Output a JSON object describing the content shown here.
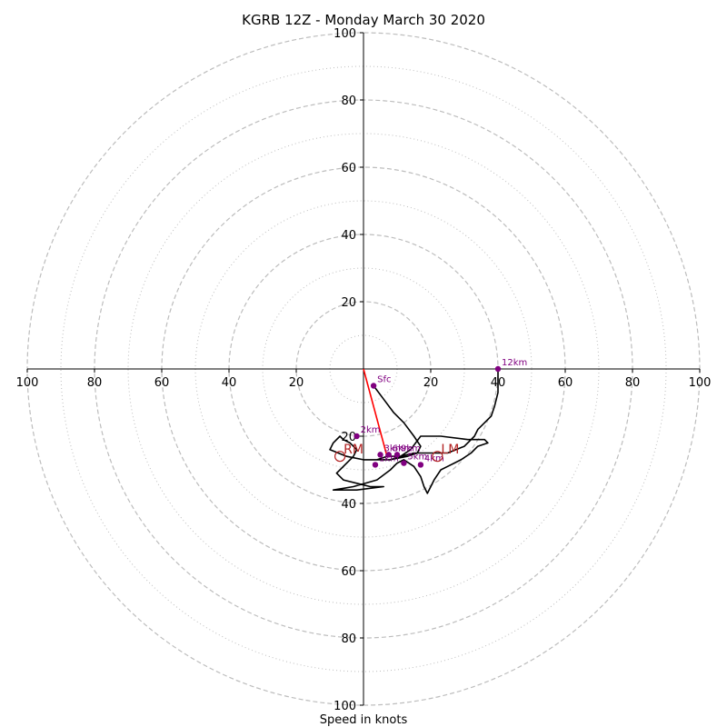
{
  "chart_data": {
    "type": "hodograph",
    "title": "KGRB 12Z - Monday March 30 2020",
    "xlabel": "Speed in knots",
    "xlim": [
      -100,
      100
    ],
    "ylim": [
      -100,
      100
    ],
    "major_rings": [
      20,
      40,
      60,
      80,
      100
    ],
    "minor_rings": [
      10,
      30,
      50,
      70,
      90
    ],
    "tick_values": [
      20,
      40,
      60,
      80,
      100
    ],
    "x_tick_labels": [
      "100",
      "80",
      "60",
      "40",
      "20",
      "20",
      "40",
      "60",
      "80",
      "100"
    ],
    "y_tick_labels": [
      "100",
      "80",
      "60",
      "40",
      "20",
      "20",
      "40",
      "60",
      "80",
      "100"
    ],
    "colors": {
      "trace": "#000000",
      "markers": "#800080",
      "shear_vector": "#ff0000",
      "storm_motion": "#b22222",
      "rings": "#bdbdbd"
    },
    "trace": [
      [
        3,
        -5
      ],
      [
        6,
        -9
      ],
      [
        9,
        -13
      ],
      [
        12,
        -16
      ],
      [
        15,
        -20
      ],
      [
        17,
        -23
      ],
      [
        16,
        -25
      ],
      [
        13,
        -26
      ],
      [
        8,
        -27
      ],
      [
        0,
        -27
      ],
      [
        -5,
        -26
      ],
      [
        -10,
        -24
      ],
      [
        -9,
        -22
      ],
      [
        -7,
        -20
      ],
      [
        -6,
        -21
      ],
      [
        -4,
        -22
      ],
      [
        -3,
        -23
      ],
      [
        -2,
        -24
      ],
      [
        -3,
        -26
      ],
      [
        -6,
        -29
      ],
      [
        -8,
        -31
      ],
      [
        -6,
        -33
      ],
      [
        -2,
        -34
      ],
      [
        2,
        -35
      ],
      [
        6,
        -35
      ],
      [
        -2,
        -36
      ],
      [
        -9,
        -36
      ],
      [
        -3,
        -35
      ],
      [
        4,
        -33
      ],
      [
        8,
        -30
      ],
      [
        10,
        -28
      ],
      [
        12,
        -27
      ],
      [
        15,
        -29
      ],
      [
        17,
        -32
      ],
      [
        18,
        -35
      ],
      [
        19,
        -37
      ],
      [
        21,
        -33
      ],
      [
        23,
        -30
      ],
      [
        25,
        -29
      ],
      [
        27,
        -28
      ],
      [
        29,
        -27
      ],
      [
        32,
        -25
      ],
      [
        34,
        -23
      ],
      [
        37,
        -22
      ],
      [
        36,
        -21
      ],
      [
        31,
        -21
      ],
      [
        23,
        -20
      ],
      [
        17,
        -20
      ],
      [
        14,
        -24
      ],
      [
        11,
        -26
      ],
      [
        8,
        -27
      ],
      [
        4,
        -27
      ],
      [
        7,
        -26
      ],
      [
        11,
        -26
      ],
      [
        15,
        -25
      ],
      [
        20,
        -25
      ],
      [
        25,
        -25
      ],
      [
        30,
        -23
      ],
      [
        33,
        -20
      ],
      [
        34,
        -18
      ],
      [
        36,
        -16
      ],
      [
        38,
        -14
      ],
      [
        39,
        -11
      ],
      [
        40,
        -7
      ],
      [
        40,
        -4
      ],
      [
        40,
        0
      ]
    ],
    "height_labels": [
      {
        "label": "Sfc",
        "u": 3,
        "v": -5
      },
      {
        "label": "2km",
        "u": -2,
        "v": -20
      },
      {
        "label": "3km",
        "u": 5,
        "v": -25.5
      },
      {
        "label": "6km",
        "u": 7.5,
        "v": -25.5
      },
      {
        "label": "9km",
        "u": 10,
        "v": -25.5
      },
      {
        "label": "1km",
        "u": 3.5,
        "v": -28.5
      },
      {
        "label": "5km",
        "u": 12,
        "v": -28
      },
      {
        "label": "4km",
        "u": 17,
        "v": -28.5
      },
      {
        "label": "12km",
        "u": 40,
        "v": 0
      }
    ],
    "storm_motion": [
      {
        "label": "RM",
        "u": -7,
        "v": -26
      },
      {
        "label": "LM",
        "u": 22,
        "v": -26
      }
    ],
    "shear_vector": {
      "from": [
        0,
        0
      ],
      "to": [
        7,
        -26
      ]
    }
  }
}
